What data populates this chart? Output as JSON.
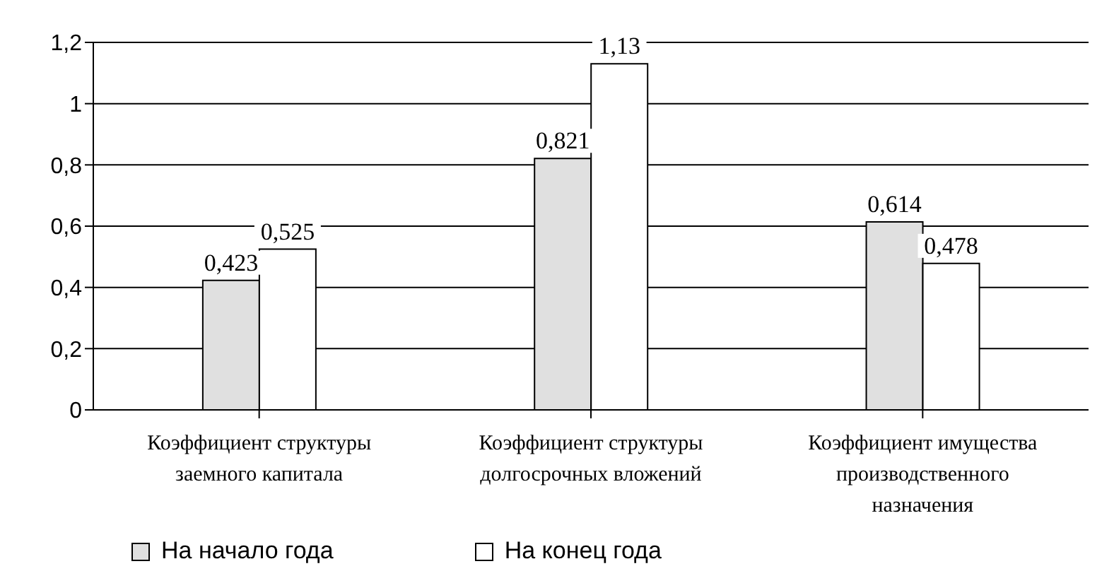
{
  "chart_data": {
    "type": "bar",
    "categories": [
      "Коэффициент структуры заемного капитала",
      "Коэффициент структуры долгосрочных вложений",
      "Коэффициент имущества производственного назначения"
    ],
    "series": [
      {
        "name": "На начало года",
        "color": "#e0e0e0",
        "values": [
          0.423,
          0.821,
          0.614
        ],
        "value_labels": [
          "0,423",
          "0,821",
          "0,614"
        ]
      },
      {
        "name": "На конец года",
        "color": "#ffffff",
        "values": [
          0.525,
          1.13,
          0.478
        ],
        "value_labels": [
          "0,525",
          "1,13",
          "0,478"
        ]
      }
    ],
    "ylim": [
      0,
      1.2
    ],
    "yticks": [
      {
        "value": 0,
        "label": "0"
      },
      {
        "value": 0.2,
        "label": "0,2"
      },
      {
        "value": 0.4,
        "label": "0,4"
      },
      {
        "value": 0.6,
        "label": "0,6"
      },
      {
        "value": 0.8,
        "label": "0,8"
      },
      {
        "value": 1,
        "label": "1"
      },
      {
        "value": 1.2,
        "label": "1,2"
      }
    ],
    "grid": "y",
    "legend": "bottom left"
  }
}
